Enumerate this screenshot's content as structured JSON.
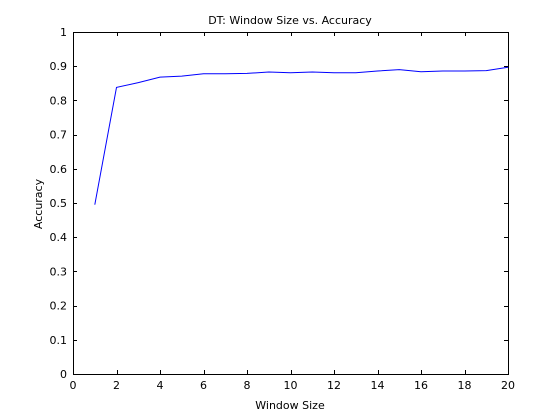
{
  "chart_data": {
    "type": "line",
    "title": "DT: Window Size vs. Accuracy",
    "xlabel": "Window Size",
    "ylabel": "Accuracy",
    "xlim": [
      0,
      20
    ],
    "ylim": [
      0,
      1
    ],
    "xticks": [
      0,
      2,
      4,
      6,
      8,
      10,
      12,
      14,
      16,
      18,
      20
    ],
    "xtick_labels": [
      "0",
      "2",
      "4",
      "6",
      "8",
      "10",
      "12",
      "14",
      "16",
      "18",
      "20"
    ],
    "yticks": [
      0,
      0.1,
      0.2,
      0.3,
      0.4,
      0.5,
      0.6,
      0.7,
      0.8,
      0.9,
      1
    ],
    "ytick_labels": [
      "0",
      "0.1",
      "0.2",
      "0.3",
      "0.4",
      "0.5",
      "0.6",
      "0.7",
      "0.8",
      "0.9",
      "1"
    ],
    "grid": false,
    "series": [
      {
        "color": "#0000ff",
        "x": [
          1,
          2,
          3,
          4,
          5,
          6,
          7,
          8,
          9,
          10,
          11,
          12,
          13,
          14,
          15,
          16,
          17,
          18,
          19,
          20
        ],
        "y": [
          0.495,
          0.838,
          0.852,
          0.868,
          0.871,
          0.878,
          0.878,
          0.879,
          0.883,
          0.881,
          0.883,
          0.881,
          0.881,
          0.886,
          0.89,
          0.884,
          0.886,
          0.886,
          0.887,
          0.897
        ]
      }
    ]
  }
}
